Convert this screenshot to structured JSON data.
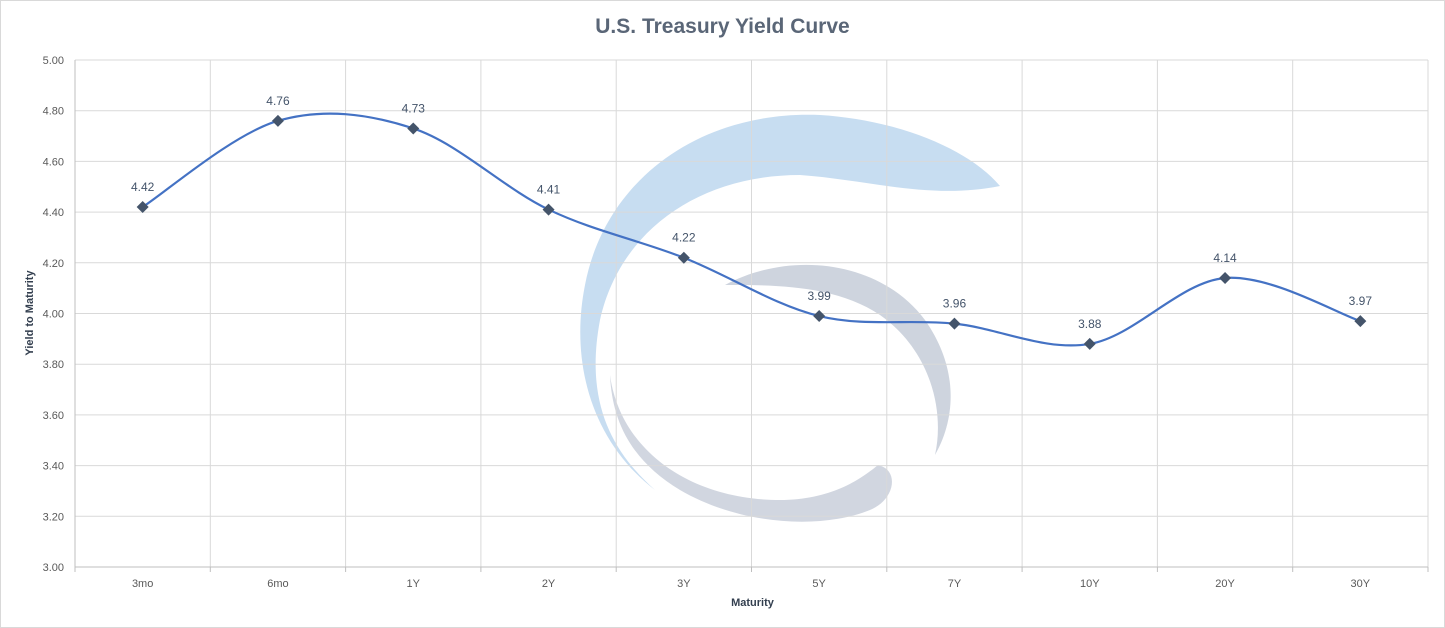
{
  "chart_data": {
    "type": "line",
    "title": "U.S. Treasury Yield Curve",
    "xlabel": "Maturity",
    "ylabel": "Yield to Maturity",
    "categories": [
      "3mo",
      "6mo",
      "1Y",
      "2Y",
      "3Y",
      "5Y",
      "7Y",
      "10Y",
      "20Y",
      "30Y"
    ],
    "series": [
      {
        "values": [
          4.42,
          4.76,
          4.73,
          4.41,
          4.22,
          3.99,
          3.96,
          3.88,
          4.14,
          3.97
        ]
      }
    ],
    "data_labels": [
      "4.42",
      "4.76",
      "4.73",
      "4.41",
      "4.22",
      "3.99",
      "3.96",
      "3.88",
      "4.14",
      "3.97"
    ],
    "ylim": [
      3.0,
      5.0
    ],
    "y_ticks": [
      "3.00",
      "3.20",
      "3.40",
      "3.60",
      "3.80",
      "4.00",
      "4.20",
      "4.40",
      "4.60",
      "4.80",
      "5.00"
    ],
    "grid": true,
    "smoothed": true,
    "marker": "diamond",
    "legend": "none",
    "colors": {
      "line": "#4472c4",
      "marker": "#44546a",
      "grid": "#d9d9d9",
      "watermark_blue": "#bdd7ee",
      "watermark_gray": "#c5ccd8"
    }
  }
}
